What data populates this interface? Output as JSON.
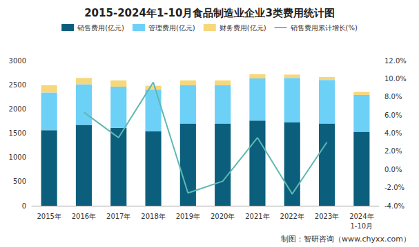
{
  "chart_data": {
    "type": "bar",
    "title": "2015-2024年1-10月食品制造业企业3类费用统计图",
    "categories": [
      "2015年",
      "2016年",
      "2017年",
      "2018年",
      "2019年",
      "2020年",
      "2021年",
      "2022年",
      "2023年",
      "2024年\n1-10月"
    ],
    "stacked": true,
    "grid": false,
    "legend": "top",
    "series": [
      {
        "name": "销售费用(亿元)",
        "type": "bar",
        "color": "#0b5f7c",
        "values": [
          1560,
          1670,
          1610,
          1540,
          1700,
          1700,
          1760,
          1720,
          1700,
          1530
        ]
      },
      {
        "name": "管理费用(亿元)",
        "type": "bar",
        "color": "#6dd0f7",
        "values": [
          780,
          840,
          850,
          860,
          790,
          790,
          870,
          920,
          900,
          760
        ]
      },
      {
        "name": "财务费用(亿元)",
        "type": "bar",
        "color": "#f7d77c",
        "values": [
          150,
          130,
          130,
          80,
          100,
          100,
          90,
          70,
          60,
          60
        ]
      },
      {
        "name": "销售费用累计增长(%)",
        "type": "line",
        "axis": "y2",
        "color": "#5fb8b0",
        "marker": "none",
        "values": [
          null,
          6.3,
          3.5,
          9.6,
          -2.6,
          -1.3,
          3.5,
          -2.7,
          3.0,
          null
        ]
      }
    ],
    "ylim": [
      0,
      3000
    ],
    "yticks": [
      0,
      500,
      1000,
      1500,
      2000,
      2500,
      3000
    ],
    "y2lim": [
      -4,
      12
    ],
    "y2ticks": [
      {
        "value": -4,
        "label": "-4.0%"
      },
      {
        "value": -2,
        "label": "-2.0%"
      },
      {
        "value": 0,
        "label": "0.0%"
      },
      {
        "value": 2,
        "label": "2.0%"
      },
      {
        "value": 4,
        "label": "4.0%"
      },
      {
        "value": 6,
        "label": "6.0%"
      },
      {
        "value": 8,
        "label": "8.0%"
      },
      {
        "value": 10,
        "label": "10.0%"
      },
      {
        "value": 12,
        "label": "12.0%"
      }
    ],
    "annotations": [
      "制图：智研咨询（www.chyxx.com）"
    ]
  }
}
